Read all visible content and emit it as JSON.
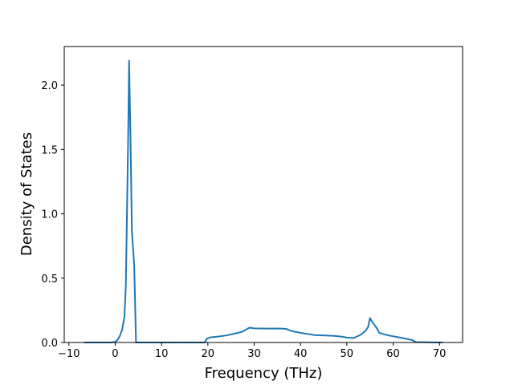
{
  "chart_data": {
    "type": "line",
    "title": "",
    "xlabel": "Frequency (THz)",
    "ylabel": "Density of States",
    "xlim": [
      -11,
      75
    ],
    "ylim": [
      0,
      2.3
    ],
    "grid": false,
    "xticks": [
      -10,
      0,
      10,
      20,
      30,
      40,
      50,
      60,
      70
    ],
    "xtick_labels": [
      "−10",
      "0",
      "10",
      "20",
      "30",
      "40",
      "50",
      "60",
      "70"
    ],
    "yticks": [
      0,
      0.5,
      1.0,
      1.5,
      2.0
    ],
    "ytick_labels": [
      "0.0",
      "0.5",
      "1.0",
      "1.5",
      "2.0"
    ],
    "series": [
      {
        "color": "#1f77b4",
        "x": [
          -6.7,
          -1,
          0,
          0.5,
          1,
          1.5,
          2,
          2.3,
          2.5,
          2.8,
          3.0,
          3.3,
          3.6,
          4.1,
          4.3,
          4.5,
          10,
          19.3,
          19.8,
          20.5,
          22,
          24,
          26,
          27.5,
          28.5,
          29,
          30,
          33,
          36,
          37,
          38,
          40,
          43,
          47,
          49,
          50,
          51.5,
          53,
          54,
          54.6,
          55,
          55.5,
          56.5,
          57,
          59,
          62,
          64,
          65,
          70.7
        ],
        "y": [
          0,
          0,
          0.005,
          0.02,
          0.05,
          0.1,
          0.2,
          0.45,
          0.9,
          1.6,
          2.19,
          1.6,
          0.87,
          0.6,
          0.3,
          0,
          0,
          0,
          0.03,
          0.04,
          0.045,
          0.055,
          0.07,
          0.085,
          0.105,
          0.115,
          0.11,
          0.108,
          0.108,
          0.105,
          0.09,
          0.075,
          0.058,
          0.052,
          0.045,
          0.038,
          0.035,
          0.06,
          0.09,
          0.12,
          0.19,
          0.16,
          0.11,
          0.075,
          0.055,
          0.035,
          0.02,
          0.003,
          0
        ]
      }
    ]
  }
}
